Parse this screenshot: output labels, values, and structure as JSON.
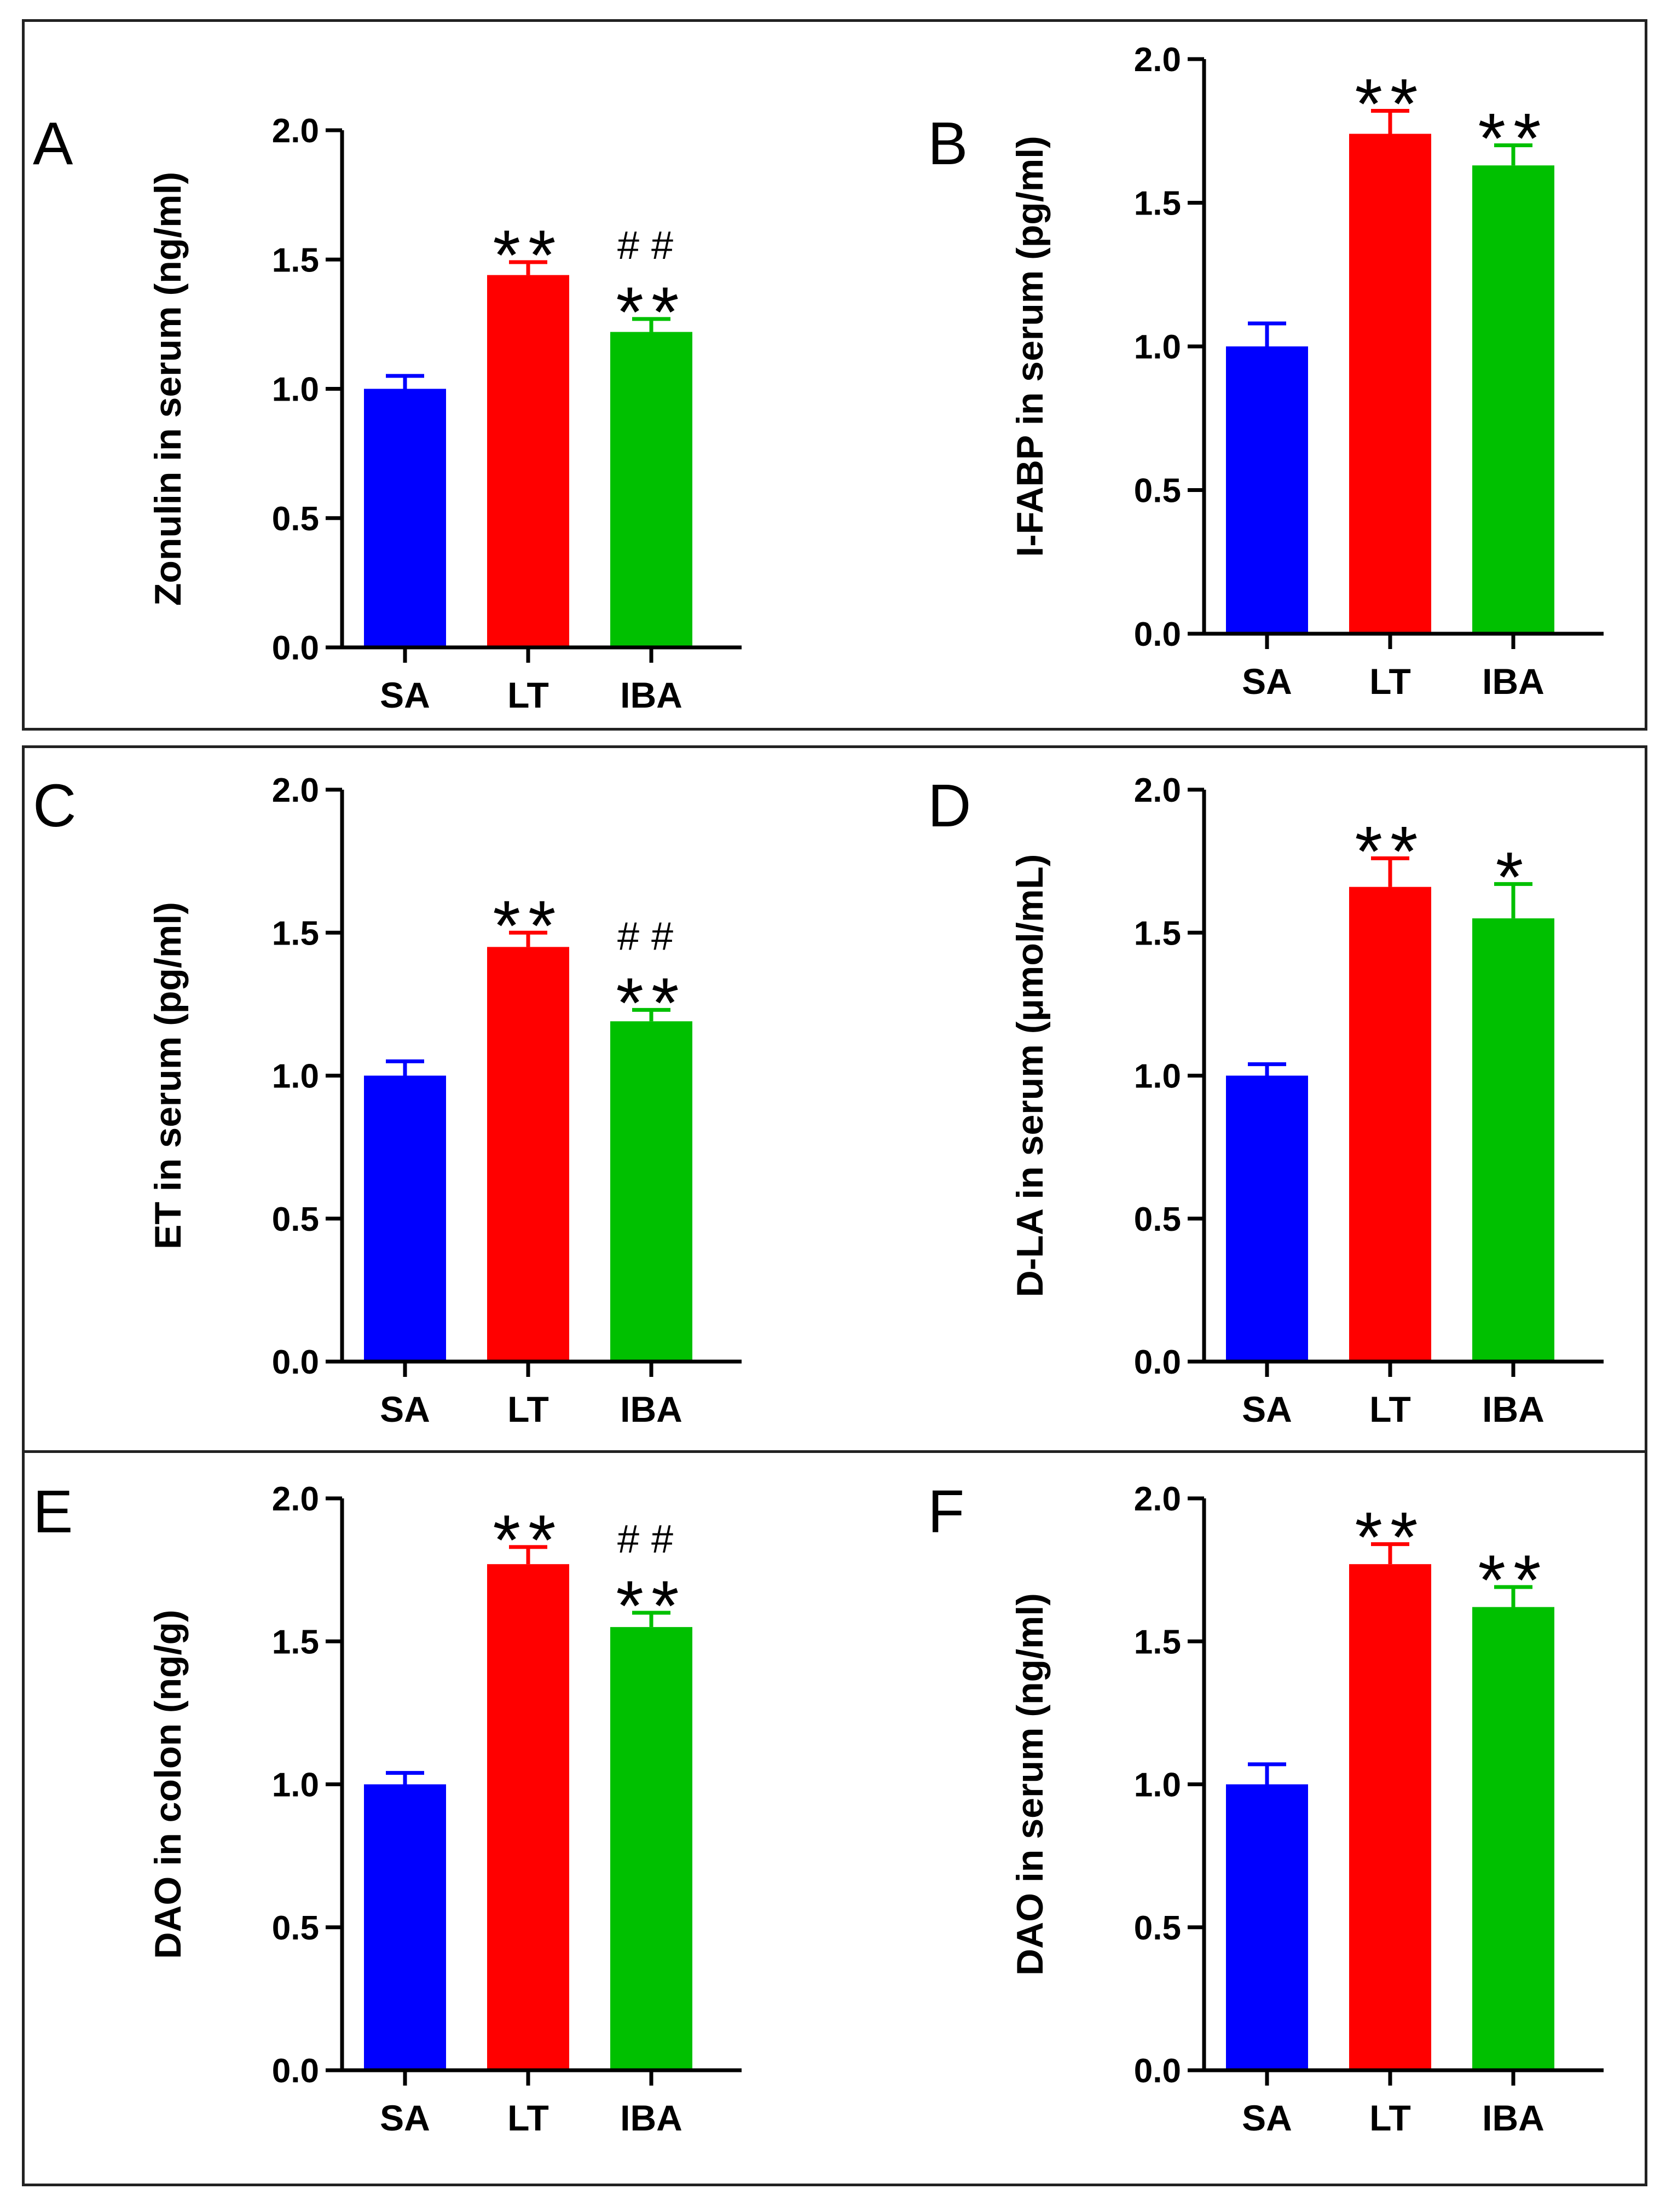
{
  "figure": {
    "colors": {
      "SA": "#0000ff",
      "LT": "#ff0000",
      "IBA": "#00c000",
      "axis": "#000000"
    }
  },
  "chart_data": [
    {
      "panel": "A",
      "type": "bar",
      "ylabel": "Zonulin in serum (ng/ml)",
      "categories": [
        "SA",
        "LT",
        "IBA"
      ],
      "values": [
        1.0,
        1.44,
        1.22
      ],
      "errors": [
        0.05,
        0.05,
        0.05
      ],
      "annotations": [
        [],
        [
          "**"
        ],
        [
          "**",
          "##"
        ]
      ],
      "ylim": [
        0,
        2.0
      ],
      "yticks": [
        "0.0",
        "0.5",
        "1.0",
        "1.5",
        "2.0"
      ]
    },
    {
      "panel": "B",
      "type": "bar",
      "ylabel": "I-FABP in serum (pg/ml)",
      "categories": [
        "SA",
        "LT",
        "IBA"
      ],
      "values": [
        1.0,
        1.74,
        1.63
      ],
      "errors": [
        0.08,
        0.08,
        0.07
      ],
      "annotations": [
        [],
        [
          "**"
        ],
        [
          "**"
        ]
      ],
      "ylim": [
        0,
        2.0
      ],
      "yticks": [
        "0.0",
        "0.5",
        "1.0",
        "1.5",
        "2.0"
      ]
    },
    {
      "panel": "C",
      "type": "bar",
      "ylabel": "ET in serum (pg/ml)",
      "categories": [
        "SA",
        "LT",
        "IBA"
      ],
      "values": [
        1.0,
        1.45,
        1.19
      ],
      "errors": [
        0.05,
        0.05,
        0.04
      ],
      "annotations": [
        [],
        [
          "**"
        ],
        [
          "**",
          "##"
        ]
      ],
      "ylim": [
        0,
        2.0
      ],
      "yticks": [
        "0.0",
        "0.5",
        "1.0",
        "1.5",
        "2.0"
      ]
    },
    {
      "panel": "D",
      "type": "bar",
      "ylabel": "D-LA in serum (μmol/mL)",
      "categories": [
        "SA",
        "LT",
        "IBA"
      ],
      "values": [
        1.0,
        1.66,
        1.55
      ],
      "errors": [
        0.04,
        0.1,
        0.12
      ],
      "annotations": [
        [],
        [
          "**"
        ],
        [
          "*"
        ]
      ],
      "ylim": [
        0,
        2.0
      ],
      "yticks": [
        "0.0",
        "0.5",
        "1.0",
        "1.5",
        "2.0"
      ]
    },
    {
      "panel": "E",
      "type": "bar",
      "ylabel": "DAO in colon (ng/g)",
      "categories": [
        "SA",
        "LT",
        "IBA"
      ],
      "values": [
        1.0,
        1.77,
        1.55
      ],
      "errors": [
        0.04,
        0.06,
        0.05
      ],
      "annotations": [
        [],
        [
          "**"
        ],
        [
          "**",
          "##"
        ]
      ],
      "ylim": [
        0,
        2.0
      ],
      "yticks": [
        "0.0",
        "0.5",
        "1.0",
        "1.5",
        "2.0"
      ]
    },
    {
      "panel": "F",
      "type": "bar",
      "ylabel": "DAO in serum (ng/ml)",
      "categories": [
        "SA",
        "LT",
        "IBA"
      ],
      "values": [
        1.0,
        1.77,
        1.62
      ],
      "errors": [
        0.07,
        0.07,
        0.07
      ],
      "annotations": [
        [],
        [
          "**"
        ],
        [
          "**"
        ]
      ],
      "ylim": [
        0,
        2.0
      ],
      "yticks": [
        "0.0",
        "0.5",
        "1.0",
        "1.5",
        "2.0"
      ]
    }
  ]
}
